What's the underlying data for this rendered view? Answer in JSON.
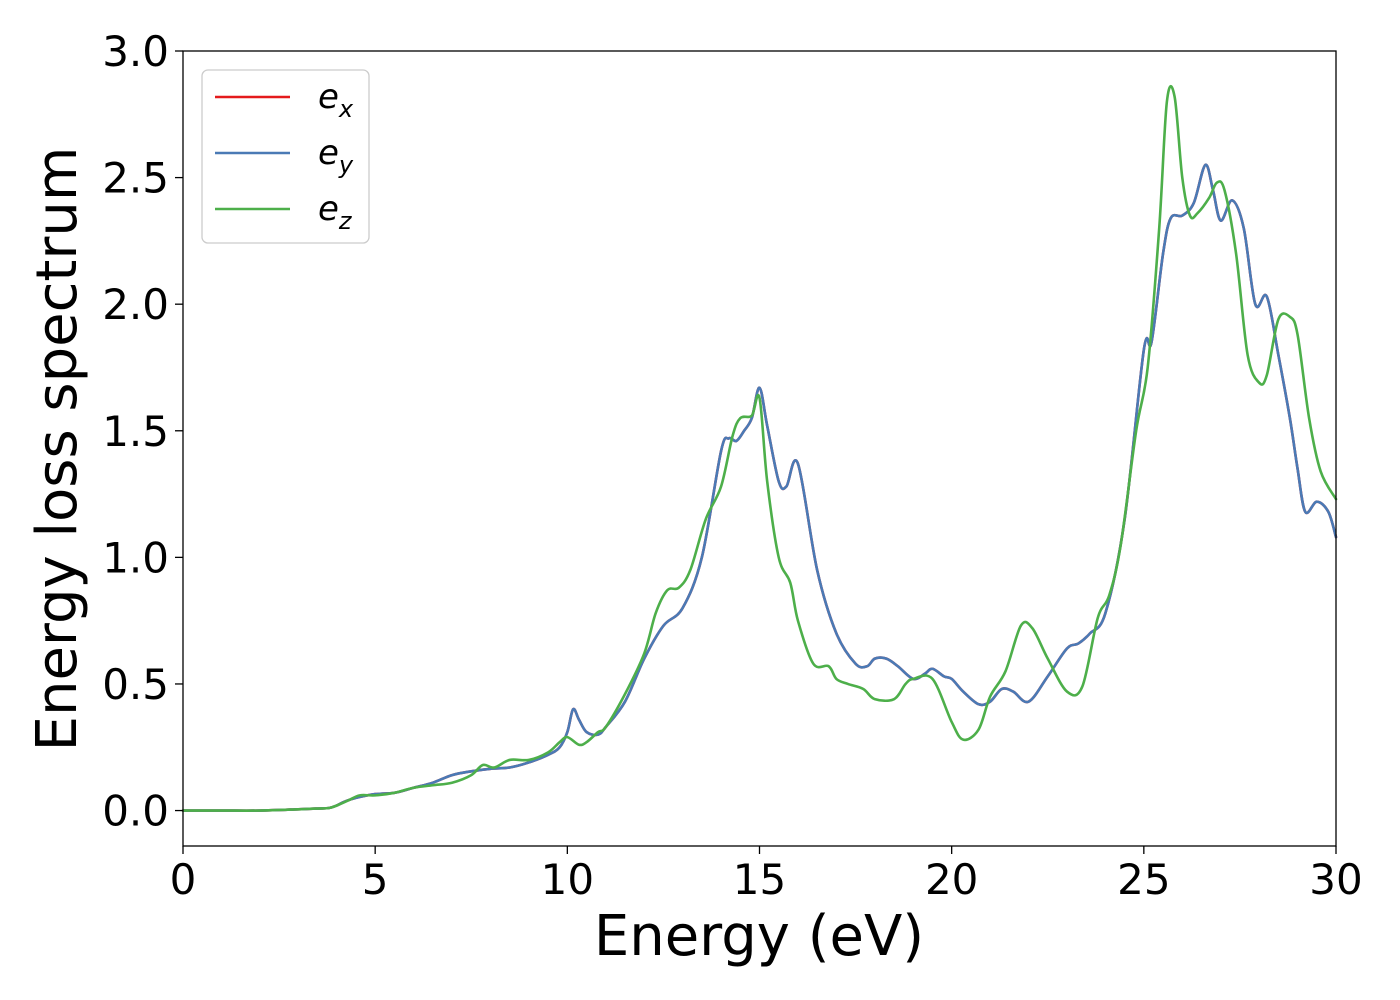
{
  "chart_data": {
    "type": "line",
    "xlabel": "Energy (eV)",
    "ylabel": "Energy loss spectrum",
    "xlim": [
      0,
      30
    ],
    "ylim": [
      -0.14,
      3.0
    ],
    "xticks": [
      "0",
      "5",
      "10",
      "15",
      "20",
      "25",
      "30"
    ],
    "yticks": [
      "0.0",
      "0.5",
      "1.0",
      "1.5",
      "2.0",
      "2.5",
      "3.0"
    ],
    "legend_position": "top-left",
    "grid": false,
    "series": [
      {
        "name": "e",
        "subscript": "x",
        "color": "#e41a1c",
        "x": [
          0,
          1,
          2,
          3,
          3.5,
          3.8,
          4,
          4.2,
          4.5,
          5,
          5.5,
          6,
          6.5,
          7,
          7.5,
          8,
          8.5,
          9,
          9.5,
          9.8,
          10,
          10.15,
          10.3,
          10.5,
          10.8,
          11,
          11.5,
          12,
          12.5,
          13,
          13.5,
          14,
          14.2,
          14.4,
          14.6,
          14.8,
          15,
          15.2,
          15.5,
          15.7,
          16,
          16.5,
          17,
          17.5,
          17.8,
          18,
          18.3,
          18.6,
          19,
          19.3,
          19.5,
          19.8,
          20,
          20.3,
          20.7,
          21,
          21.3,
          21.6,
          22,
          22.5,
          23,
          23.3,
          23.6,
          24,
          24.5,
          25,
          25.2,
          25.5,
          25.7,
          26,
          26.3,
          26.6,
          26.8,
          27,
          27.3,
          27.6,
          27.9,
          28.2,
          28.5,
          28.8,
          29,
          29.2,
          29.5,
          29.8,
          30
        ],
        "y": [
          0,
          0,
          0,
          0.005,
          0.008,
          0.01,
          0.02,
          0.035,
          0.05,
          0.065,
          0.07,
          0.09,
          0.11,
          0.14,
          0.155,
          0.165,
          0.17,
          0.19,
          0.22,
          0.25,
          0.31,
          0.4,
          0.36,
          0.31,
          0.3,
          0.33,
          0.43,
          0.6,
          0.73,
          0.8,
          1.0,
          1.42,
          1.47,
          1.46,
          1.5,
          1.55,
          1.67,
          1.52,
          1.3,
          1.28,
          1.37,
          0.95,
          0.7,
          0.58,
          0.57,
          0.6,
          0.6,
          0.57,
          0.52,
          0.54,
          0.56,
          0.53,
          0.52,
          0.47,
          0.42,
          0.43,
          0.48,
          0.47,
          0.43,
          0.53,
          0.64,
          0.66,
          0.7,
          0.78,
          1.15,
          1.82,
          1.85,
          2.2,
          2.34,
          2.35,
          2.4,
          2.55,
          2.45,
          2.33,
          2.41,
          2.3,
          2.0,
          2.03,
          1.8,
          1.55,
          1.35,
          1.18,
          1.22,
          1.18,
          1.08
        ]
      },
      {
        "name": "e",
        "subscript": "y",
        "color": "#4a7ab5",
        "x": [
          0,
          1,
          2,
          3,
          3.5,
          3.8,
          4,
          4.2,
          4.5,
          5,
          5.5,
          6,
          6.5,
          7,
          7.5,
          8,
          8.5,
          9,
          9.5,
          9.8,
          10,
          10.15,
          10.3,
          10.5,
          10.8,
          11,
          11.5,
          12,
          12.5,
          13,
          13.5,
          14,
          14.2,
          14.4,
          14.6,
          14.8,
          15,
          15.2,
          15.5,
          15.7,
          16,
          16.5,
          17,
          17.5,
          17.8,
          18,
          18.3,
          18.6,
          19,
          19.3,
          19.5,
          19.8,
          20,
          20.3,
          20.7,
          21,
          21.3,
          21.6,
          22,
          22.5,
          23,
          23.3,
          23.6,
          24,
          24.5,
          25,
          25.2,
          25.5,
          25.7,
          26,
          26.3,
          26.6,
          26.8,
          27,
          27.3,
          27.6,
          27.9,
          28.2,
          28.5,
          28.8,
          29,
          29.2,
          29.5,
          29.8,
          30
        ],
        "y": [
          0,
          0,
          0,
          0.005,
          0.008,
          0.01,
          0.02,
          0.035,
          0.05,
          0.065,
          0.07,
          0.09,
          0.11,
          0.14,
          0.155,
          0.165,
          0.17,
          0.19,
          0.22,
          0.25,
          0.31,
          0.4,
          0.36,
          0.31,
          0.3,
          0.33,
          0.43,
          0.6,
          0.73,
          0.8,
          1.0,
          1.42,
          1.47,
          1.46,
          1.5,
          1.55,
          1.67,
          1.52,
          1.3,
          1.28,
          1.37,
          0.95,
          0.7,
          0.58,
          0.57,
          0.6,
          0.6,
          0.57,
          0.52,
          0.54,
          0.56,
          0.53,
          0.52,
          0.47,
          0.42,
          0.43,
          0.48,
          0.47,
          0.43,
          0.53,
          0.64,
          0.66,
          0.7,
          0.78,
          1.15,
          1.82,
          1.85,
          2.2,
          2.34,
          2.35,
          2.4,
          2.55,
          2.45,
          2.33,
          2.41,
          2.3,
          2.0,
          2.03,
          1.8,
          1.55,
          1.35,
          1.18,
          1.22,
          1.18,
          1.08
        ]
      },
      {
        "name": "e",
        "subscript": "z",
        "color": "#4daf4a",
        "x": [
          0,
          1,
          2,
          3,
          3.5,
          3.8,
          4,
          4.3,
          4.6,
          5,
          5.5,
          6,
          6.5,
          7,
          7.5,
          7.8,
          8.1,
          8.5,
          9,
          9.5,
          9.8,
          10,
          10.3,
          10.5,
          10.8,
          11,
          11.5,
          12,
          12.3,
          12.6,
          12.9,
          13.2,
          13.6,
          14,
          14.3,
          14.5,
          14.8,
          15,
          15.2,
          15.5,
          15.8,
          16,
          16.4,
          16.8,
          17,
          17.3,
          17.7,
          18,
          18.5,
          18.8,
          19,
          19.5,
          20,
          20.3,
          20.7,
          21,
          21.4,
          21.8,
          22.1,
          22.5,
          23,
          23.4,
          23.8,
          24.1,
          24.4,
          24.8,
          25.1,
          25.4,
          25.6,
          25.8,
          26,
          26.2,
          26.4,
          26.7,
          26.9,
          27.1,
          27.4,
          27.7,
          28,
          28.2,
          28.5,
          28.8,
          29,
          29.3,
          29.6,
          30
        ],
        "y": [
          0,
          0,
          0,
          0.005,
          0.008,
          0.01,
          0.02,
          0.04,
          0.06,
          0.06,
          0.07,
          0.09,
          0.1,
          0.11,
          0.14,
          0.18,
          0.17,
          0.2,
          0.2,
          0.23,
          0.27,
          0.29,
          0.26,
          0.27,
          0.31,
          0.33,
          0.46,
          0.62,
          0.78,
          0.87,
          0.88,
          0.95,
          1.15,
          1.28,
          1.48,
          1.55,
          1.56,
          1.63,
          1.3,
          1.0,
          0.9,
          0.75,
          0.58,
          0.57,
          0.52,
          0.5,
          0.48,
          0.44,
          0.44,
          0.5,
          0.52,
          0.52,
          0.35,
          0.28,
          0.32,
          0.45,
          0.55,
          0.73,
          0.72,
          0.6,
          0.47,
          0.49,
          0.76,
          0.85,
          1.05,
          1.5,
          1.75,
          2.3,
          2.8,
          2.82,
          2.5,
          2.35,
          2.36,
          2.42,
          2.48,
          2.45,
          2.2,
          1.8,
          1.69,
          1.72,
          1.94,
          1.95,
          1.88,
          1.55,
          1.34,
          1.23
        ]
      }
    ]
  }
}
